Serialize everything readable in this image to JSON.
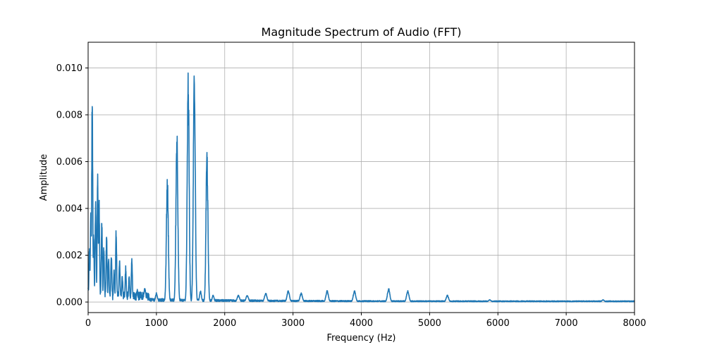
{
  "chart_data": {
    "type": "line",
    "title": "Magnitude Spectrum of Audio (FFT)",
    "xlabel": "Frequency (Hz)",
    "ylabel": "Amplitude",
    "xlim": [
      0,
      8000
    ],
    "ylim": [
      -0.00045,
      0.0111
    ],
    "grid": true,
    "xticks": [
      0,
      1000,
      2000,
      3000,
      4000,
      5000,
      6000,
      7000,
      8000
    ],
    "xtick_labels": [
      "0",
      "1000",
      "2000",
      "3000",
      "4000",
      "5000",
      "6000",
      "7000",
      "8000"
    ],
    "yticks": [
      0.0,
      0.002,
      0.004,
      0.006,
      0.008,
      0.01
    ],
    "ytick_labels": [
      "0.000",
      "0.002",
      "0.004",
      "0.006",
      "0.008",
      "0.010"
    ],
    "series": [
      {
        "color": "#1f77b4",
        "peaks": [
          {
            "x": 20,
            "y": 0.0025
          },
          {
            "x": 40,
            "y": 0.0042
          },
          {
            "x": 60,
            "y": 0.0092
          },
          {
            "x": 80,
            "y": 0.003
          },
          {
            "x": 110,
            "y": 0.0045
          },
          {
            "x": 140,
            "y": 0.0055
          },
          {
            "x": 160,
            "y": 0.0045
          },
          {
            "x": 200,
            "y": 0.0037
          },
          {
            "x": 230,
            "y": 0.0025
          },
          {
            "x": 270,
            "y": 0.003
          },
          {
            "x": 300,
            "y": 0.0019
          },
          {
            "x": 340,
            "y": 0.0022
          },
          {
            "x": 380,
            "y": 0.0015
          },
          {
            "x": 410,
            "y": 0.0033
          },
          {
            "x": 460,
            "y": 0.0019
          },
          {
            "x": 500,
            "y": 0.0012
          },
          {
            "x": 550,
            "y": 0.0016
          },
          {
            "x": 600,
            "y": 0.0012
          },
          {
            "x": 640,
            "y": 0.002
          },
          {
            "x": 720,
            "y": 0.0006
          },
          {
            "x": 830,
            "y": 0.0006
          },
          {
            "x": 1000,
            "y": 0.0004
          },
          {
            "x": 1160,
            "y": 0.0055
          },
          {
            "x": 1300,
            "y": 0.0076
          },
          {
            "x": 1465,
            "y": 0.0101
          },
          {
            "x": 1555,
            "y": 0.0106
          },
          {
            "x": 1645,
            "y": 0.0005
          },
          {
            "x": 1740,
            "y": 0.0066
          },
          {
            "x": 1830,
            "y": 0.0003
          },
          {
            "x": 2200,
            "y": 0.0003
          },
          {
            "x": 2330,
            "y": 0.0003
          },
          {
            "x": 2600,
            "y": 0.0004
          },
          {
            "x": 2930,
            "y": 0.0005
          },
          {
            "x": 3120,
            "y": 0.0004
          },
          {
            "x": 3500,
            "y": 0.0005
          },
          {
            "x": 3900,
            "y": 0.0005
          },
          {
            "x": 4400,
            "y": 0.0006
          },
          {
            "x": 4680,
            "y": 0.0005
          },
          {
            "x": 5260,
            "y": 0.0003
          },
          {
            "x": 5880,
            "y": 0.0001
          },
          {
            "x": 7540,
            "y": 0.0001
          }
        ]
      }
    ]
  }
}
